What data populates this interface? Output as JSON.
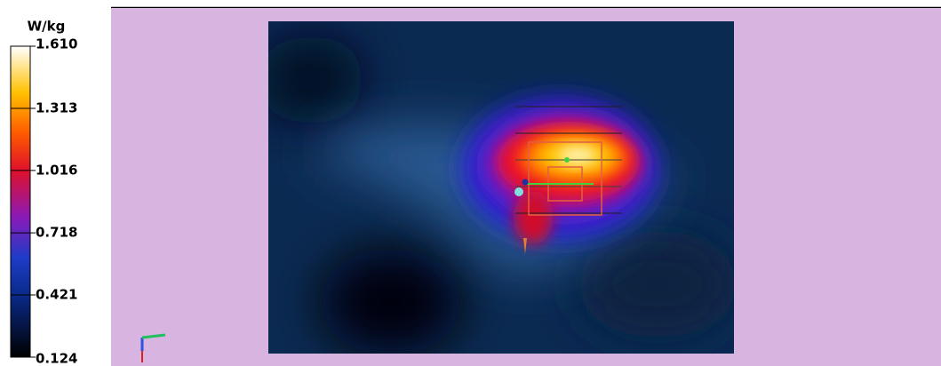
{
  "colorbar": {
    "unit": "W/kg",
    "ticks": [
      {
        "value": 1.61,
        "label": "1.610"
      },
      {
        "value": 1.313,
        "label": "1.313"
      },
      {
        "value": 1.016,
        "label": "1.016"
      },
      {
        "value": 0.718,
        "label": "0.718"
      },
      {
        "value": 0.421,
        "label": "0.421"
      },
      {
        "value": 0.124,
        "label": "0.124"
      }
    ]
  }
}
